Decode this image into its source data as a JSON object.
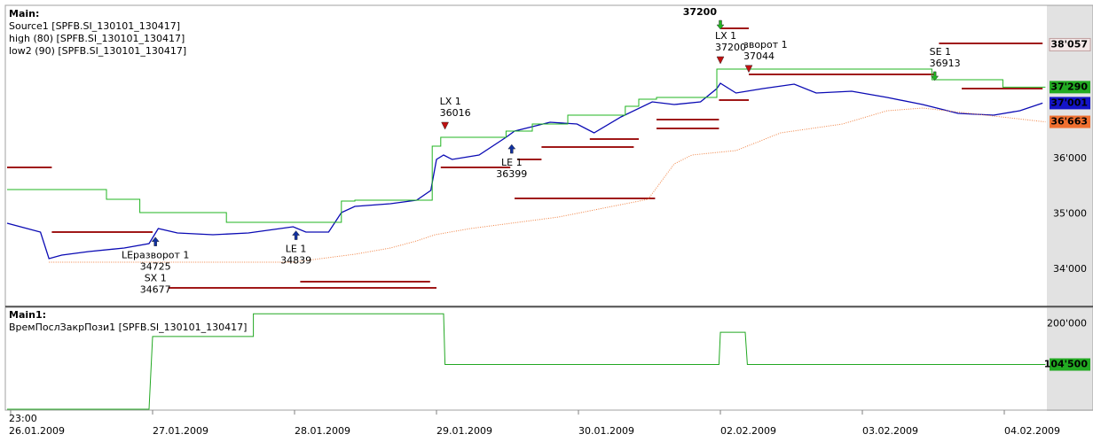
{
  "chart_data": [
    {
      "type": "line",
      "title": "Main:",
      "ylim": [
        33344,
        38736
      ],
      "yticks": [
        {
          "value": 34000,
          "label": "34'000"
        },
        {
          "value": 35000,
          "label": "35'000"
        },
        {
          "value": 36000,
          "label": "36'000"
        }
      ],
      "grid": true,
      "series": [
        {
          "name": "Source1 [SPFB.SI_130101_130417]",
          "color": "#0a0ab4",
          "dotted": false,
          "x": [
            -0.025,
            0.21,
            0.27,
            0.36,
            0.55,
            0.8,
            0.975,
            1.04,
            1.175,
            1.425,
            1.675,
            1.99,
            2.08,
            2.24,
            2.33,
            2.425,
            2.675,
            2.86,
            2.96,
            3.0,
            3.05,
            3.11,
            3.3,
            3.49,
            3.55,
            3.8,
            3.99,
            4.11,
            4.3,
            4.52,
            4.675,
            4.86,
            4.975,
            5.0,
            5.11,
            5.3,
            5.52,
            5.675,
            5.925,
            6.175,
            6.425,
            6.675,
            6.925,
            7.11,
            7.27
          ],
          "values": [
            34832,
            34672,
            34192,
            34256,
            34320,
            34384,
            34464,
            34736,
            34656,
            34624,
            34656,
            34768,
            34672,
            34672,
            35024,
            35136,
            35184,
            35248,
            35424,
            35984,
            36064,
            35984,
            36064,
            36384,
            36496,
            36656,
            36624,
            36464,
            36752,
            37024,
            36976,
            37024,
            37264,
            37360,
            37184,
            37264,
            37344,
            37184,
            37216,
            37104,
            36976,
            36816,
            36784,
            36864,
            37001
          ]
        },
        {
          "name": "high (80) [SPFB.SI_130101_130417]",
          "color": "#22b422",
          "dotted": false,
          "x": [
            -0.025,
            0.675,
            0.675,
            0.91,
            0.91,
            1.52,
            1.52,
            2.33,
            2.33,
            2.425,
            2.425,
            2.97,
            2.97,
            3.03,
            3.03,
            3.49,
            3.49,
            3.675,
            3.675,
            3.925,
            3.925,
            4.33,
            4.33,
            4.425,
            4.425,
            4.55,
            4.55,
            4.975,
            4.975,
            6.49,
            6.49,
            6.99,
            6.99,
            7.29
          ],
          "values": [
            35440,
            35440,
            35264,
            35264,
            35024,
            35024,
            34848,
            34848,
            35232,
            35232,
            35248,
            35248,
            36224,
            36224,
            36384,
            36384,
            36496,
            36496,
            36624,
            36624,
            36784,
            36784,
            36944,
            36944,
            37072,
            37072,
            37104,
            37104,
            37616,
            37616,
            37424,
            37424,
            37290,
            37290
          ]
        },
        {
          "name": "low2 (90) [SPFB.SI_130101_130417]",
          "color": "#f08040",
          "dotted": true,
          "x": [
            0.27,
            1.99,
            2.425,
            2.675,
            2.86,
            2.99,
            3.24,
            3.86,
            4.175,
            4.49,
            4.675,
            4.8,
            5.11,
            5.425,
            5.86,
            6.175,
            6.425,
            7.29
          ],
          "values": [
            34128,
            34128,
            34272,
            34384,
            34512,
            34624,
            34736,
            34944,
            35104,
            35264,
            35904,
            36064,
            36144,
            36464,
            36624,
            36864,
            36912,
            36663
          ]
        }
      ],
      "level_color": "#a01818",
      "levels": [
        {
          "x": [
            -0.025,
            0.29
          ],
          "y": 35840
        },
        {
          "x": [
            0.29,
            1.0
          ],
          "y": 34672
        },
        {
          "x": [
            1.11,
            3.0
          ],
          "y": 33664
        },
        {
          "x": [
            2.04,
            2.955
          ],
          "y": 33776
        },
        {
          "x": [
            3.03,
            3.52
          ],
          "y": 35840
        },
        {
          "x": [
            3.55,
            4.54
          ],
          "y": 35280
        },
        {
          "x": [
            3.57,
            3.74
          ],
          "y": 35984
        },
        {
          "x": [
            3.74,
            4.39
          ],
          "y": 36208
        },
        {
          "x": [
            4.08,
            4.425
          ],
          "y": 36352
        },
        {
          "x": [
            4.55,
            4.99
          ],
          "y": 36544
        },
        {
          "x": [
            4.55,
            4.99
          ],
          "y": 36704
        },
        {
          "x": [
            5.0,
            5.2
          ],
          "y": 38352
        },
        {
          "x": [
            5.2,
            6.52
          ],
          "y": 37520
        },
        {
          "x": [
            4.99,
            5.2
          ],
          "y": 37056
        },
        {
          "x": [
            6.54,
            7.27
          ],
          "y": 38080
        },
        {
          "x": [
            6.7,
            7.27
          ],
          "y": 37264
        }
      ],
      "signals": [
        {
          "kind": "buy",
          "x": 1.02,
          "price": 34725,
          "lines": [
            "LEразворот 1",
            "34725",
            "SX 1",
            "34677"
          ]
        },
        {
          "kind": "buy",
          "x": 2.01,
          "price": 34839,
          "lines": [
            "LE 1",
            "34839"
          ]
        },
        {
          "kind": "sell",
          "x": 3.06,
          "price": 36016,
          "lines": [
            "LX 1",
            "36016"
          ]
        },
        {
          "kind": "buy",
          "x": 3.53,
          "price": 36399,
          "lines": [
            "LE 1",
            "36399"
          ]
        },
        {
          "kind": "top",
          "x": 5.0,
          "price": 37200,
          "lines": [
            "37200"
          ]
        },
        {
          "kind": "sell",
          "x": 5.0,
          "price": 37200,
          "lines": [
            "LX 1",
            "37200"
          ]
        },
        {
          "kind": "sell",
          "x": 5.2,
          "price": 37044,
          "lines": [
            "зворот 1",
            "37044"
          ]
        },
        {
          "kind": "short",
          "x": 6.51,
          "price": 36913,
          "lines": [
            "SE 1",
            "36913"
          ]
        }
      ],
      "price_labels": [
        {
          "value": 38057,
          "label": "38'057",
          "color": "#a01818",
          "fill": "#f4e8e8"
        },
        {
          "value": 37290,
          "label": "37'290",
          "color": "#ffffff",
          "fill": "#22aa22"
        },
        {
          "value": 37001,
          "label": "37'001",
          "color": "#ffffff",
          "fill": "#1414c8"
        },
        {
          "value": 36663,
          "label": "36'663",
          "color": "#ffffff",
          "fill": "#f07030"
        }
      ]
    },
    {
      "type": "line",
      "title": "Main1:",
      "ylim": [
        0,
        236000
      ],
      "yticks": [
        {
          "value": 200000,
          "label": "200'000"
        }
      ],
      "grid": true,
      "xlim": [
        -0.025,
        7.3
      ],
      "xticks": [
        {
          "value": 0,
          "label": "26.01.2009"
        },
        {
          "value": 1,
          "label": "27.01.2009"
        },
        {
          "value": 2,
          "label": "28.01.2009"
        },
        {
          "value": 3,
          "label": "29.01.2009"
        },
        {
          "value": 4,
          "label": "30.01.2009"
        },
        {
          "value": 5,
          "label": "02.02.2009"
        },
        {
          "value": 6,
          "label": "03.02.2009"
        },
        {
          "value": 7,
          "label": "04.02.2009"
        }
      ],
      "time_label": "23:00",
      "series": [
        {
          "name": "ВремПослЗакрПози1 [SPFB.SI_130101_130417]",
          "color": "#22a822",
          "dotted": false,
          "x": [
            -0.025,
            0.975,
            1.0,
            1.71,
            1.71,
            3.05,
            3.06,
            4.99,
            5.0,
            5.175,
            5.19,
            7.29
          ],
          "values": [
            0,
            0,
            170000,
            170000,
            223000,
            223000,
            104500,
            104500,
            180000,
            180000,
            104500,
            104500
          ]
        }
      ],
      "price_labels": [
        {
          "value": 104500,
          "label": "104'500",
          "color": "#ffffff",
          "fill": "#22aa22"
        }
      ]
    }
  ]
}
